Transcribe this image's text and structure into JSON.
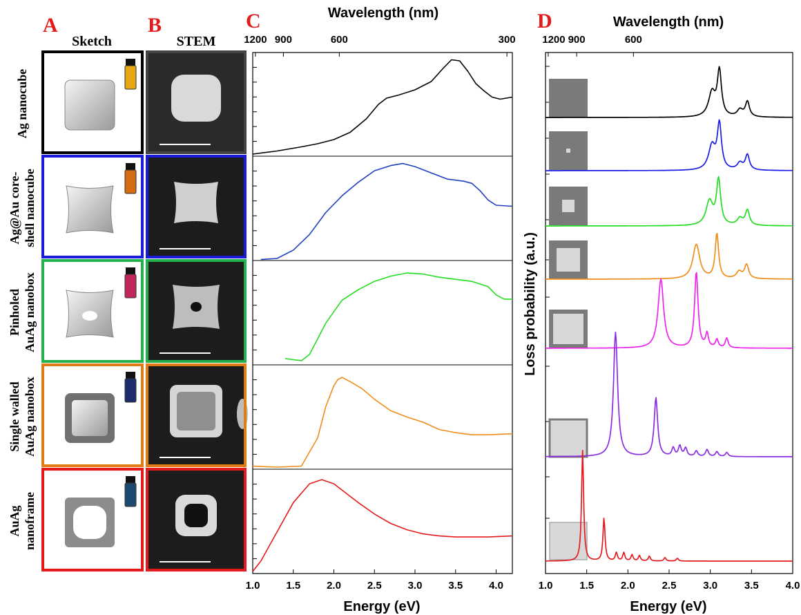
{
  "panels": {
    "a_letter": "A",
    "b_letter": "B",
    "c_letter": "C",
    "d_letter": "D",
    "a_title": "Sketch",
    "b_title": "STEM"
  },
  "rows": [
    {
      "label_lines": [
        "Ag nanocube"
      ],
      "frame_color": "#000000",
      "vial_color": "#e5a813",
      "sketch": "cube"
    },
    {
      "label_lines": [
        "Ag@Au core-",
        "shell nanocube"
      ],
      "frame_color": "#1a1adb",
      "vial_color": "#d46d12",
      "sketch": "concave"
    },
    {
      "label_lines": [
        "Pinholed",
        "AuAg nanobox"
      ],
      "frame_color": "#22b14c",
      "vial_color": "#c2255c",
      "sketch": "pinhole"
    },
    {
      "label_lines": [
        "Single walled",
        "AuAg nanobox"
      ],
      "frame_color": "#e07b16",
      "vial_color": "#1d2a6b",
      "sketch": "box"
    },
    {
      "label_lines": [
        "AuAg",
        "nanoframe"
      ],
      "frame_color": "#e31a1c",
      "vial_color": "#1c4a6e",
      "sketch": "frame"
    }
  ],
  "chart_data": [
    {
      "type": "line",
      "panel": "C",
      "title": "Wavelength (nm)",
      "xlabel": "Energy (eV)",
      "ylabel": "",
      "xlim": [
        1.0,
        4.2
      ],
      "x_ticks": [
        1.0,
        1.5,
        2.0,
        2.5,
        3.0,
        3.5,
        4.0
      ],
      "x_tick_labels": [
        "1.0",
        "1.5",
        "2.0",
        "2.5",
        "3.0",
        "3.5",
        "4.0"
      ],
      "top_ticks": [
        {
          "label": "1200",
          "ev": 1.033
        },
        {
          "label": "900",
          "ev": 1.378
        },
        {
          "label": "600",
          "ev": 2.067
        },
        {
          "label": "300",
          "ev": 4.133
        }
      ],
      "series": [
        {
          "color": "#000000",
          "x": [
            1.0,
            1.3,
            1.6,
            1.8,
            2.0,
            2.2,
            2.4,
            2.55,
            2.65,
            2.8,
            3.0,
            3.2,
            3.35,
            3.45,
            3.55,
            3.65,
            3.75,
            3.85,
            3.95,
            4.05,
            4.2
          ],
          "y": [
            0.02,
            0.05,
            0.09,
            0.12,
            0.16,
            0.23,
            0.36,
            0.5,
            0.56,
            0.59,
            0.64,
            0.72,
            0.85,
            0.93,
            0.92,
            0.82,
            0.7,
            0.63,
            0.57,
            0.55,
            0.57
          ]
        },
        {
          "color": "#1f3fbf",
          "x": [
            1.1,
            1.3,
            1.5,
            1.7,
            1.9,
            2.1,
            2.3,
            2.5,
            2.7,
            2.85,
            3.0,
            3.2,
            3.4,
            3.6,
            3.7,
            3.8,
            3.9,
            4.0,
            4.2
          ],
          "y": [
            0.01,
            0.02,
            0.1,
            0.25,
            0.46,
            0.62,
            0.75,
            0.86,
            0.91,
            0.93,
            0.9,
            0.84,
            0.78,
            0.76,
            0.74,
            0.67,
            0.58,
            0.53,
            0.52
          ]
        },
        {
          "color": "#22dd22",
          "x": [
            1.4,
            1.5,
            1.6,
            1.7,
            1.9,
            2.1,
            2.3,
            2.5,
            2.7,
            2.9,
            3.1,
            3.3,
            3.5,
            3.7,
            3.9,
            4.0,
            4.1,
            4.2
          ],
          "y": [
            0.06,
            0.05,
            0.04,
            0.1,
            0.4,
            0.62,
            0.72,
            0.8,
            0.85,
            0.88,
            0.87,
            0.84,
            0.82,
            0.8,
            0.75,
            0.67,
            0.63,
            0.63
          ]
        },
        {
          "color": "#f08c1a",
          "x": [
            1.0,
            1.3,
            1.6,
            1.8,
            1.9,
            2.0,
            2.05,
            2.1,
            2.2,
            2.35,
            2.5,
            2.7,
            2.9,
            3.1,
            3.3,
            3.5,
            3.7,
            3.9,
            4.2
          ],
          "y": [
            0.03,
            0.02,
            0.03,
            0.3,
            0.6,
            0.8,
            0.86,
            0.88,
            0.84,
            0.77,
            0.67,
            0.56,
            0.5,
            0.45,
            0.38,
            0.35,
            0.33,
            0.33,
            0.34
          ]
        },
        {
          "color": "#e31a1c",
          "x": [
            1.0,
            1.1,
            1.3,
            1.5,
            1.7,
            1.85,
            2.0,
            2.1,
            2.3,
            2.5,
            2.7,
            2.9,
            3.1,
            3.3,
            3.5,
            3.7,
            3.9,
            4.2
          ],
          "y": [
            0.02,
            0.12,
            0.4,
            0.68,
            0.86,
            0.9,
            0.86,
            0.8,
            0.68,
            0.57,
            0.48,
            0.42,
            0.38,
            0.36,
            0.35,
            0.35,
            0.35,
            0.36
          ]
        }
      ]
    },
    {
      "type": "line",
      "panel": "D",
      "title": "Wavelength (nm)",
      "xlabel": "Energy (eV)",
      "ylabel": "Loss probability (a.u.)",
      "xlim": [
        1.0,
        4.0
      ],
      "x_ticks": [
        1.0,
        1.5,
        2.0,
        2.5,
        3.0,
        3.5,
        4.0
      ],
      "x_tick_labels": [
        "1.0",
        "1.5",
        "2.0",
        "2.5",
        "3.0",
        "3.5",
        "4.0"
      ],
      "top_ticks": [
        {
          "label": "1200",
          "ev": 1.033
        },
        {
          "label": "900",
          "ev": 1.378
        },
        {
          "label": "600",
          "ev": 2.067
        }
      ],
      "series": [
        {
          "color": "#000000",
          "offset": 0.0,
          "baseline": 0.004,
          "peaks": [
            [
              3.02,
              0.035,
              0.05
            ],
            [
              3.11,
              0.065,
              0.03
            ],
            [
              3.36,
              0.01,
              0.04
            ],
            [
              3.45,
              0.022,
              0.03
            ]
          ]
        },
        {
          "color": "#1a1ae6",
          "offset": 0.0,
          "baseline": 0.004,
          "peaks": [
            [
              3.02,
              0.035,
              0.05
            ],
            [
              3.11,
              0.065,
              0.03
            ],
            [
              3.36,
              0.01,
              0.04
            ],
            [
              3.45,
              0.022,
              0.03
            ]
          ]
        },
        {
          "color": "#22dd22",
          "offset": 0.0,
          "baseline": 0.004,
          "peaks": [
            [
              2.99,
              0.035,
              0.05
            ],
            [
              3.1,
              0.065,
              0.03
            ],
            [
              3.36,
              0.01,
              0.04
            ],
            [
              3.45,
              0.022,
              0.03
            ]
          ]
        },
        {
          "color": "#f08c1a",
          "offset": 0.0,
          "baseline": 0.004,
          "peaks": [
            [
              2.83,
              0.05,
              0.05
            ],
            [
              3.08,
              0.065,
              0.025
            ],
            [
              3.35,
              0.01,
              0.04
            ],
            [
              3.44,
              0.02,
              0.03
            ]
          ]
        },
        {
          "color": "#ee22ee",
          "offset": 0.0,
          "baseline": 0.004,
          "peaks": [
            [
              2.4,
              0.1,
              0.04
            ],
            [
              2.83,
              0.11,
              0.025
            ],
            [
              2.96,
              0.02,
              0.02
            ],
            [
              3.08,
              0.012,
              0.02
            ],
            [
              3.2,
              0.014,
              0.02
            ]
          ]
        },
        {
          "color": "#8a2be2",
          "offset": 0.0,
          "baseline": 0.003,
          "peaks": [
            [
              1.85,
              0.18,
              0.03
            ],
            [
              2.34,
              0.085,
              0.025
            ],
            [
              2.55,
              0.012,
              0.02
            ],
            [
              2.63,
              0.015,
              0.02
            ],
            [
              2.7,
              0.012,
              0.02
            ],
            [
              2.83,
              0.008,
              0.02
            ],
            [
              2.96,
              0.01,
              0.02
            ],
            [
              3.08,
              0.007,
              0.02
            ],
            [
              3.2,
              0.006,
              0.02
            ]
          ]
        },
        {
          "color": "#e31a1c",
          "offset": 0.0,
          "baseline": 0.003,
          "peaks": [
            [
              1.45,
              0.16,
              0.015
            ],
            [
              1.71,
              0.062,
              0.015
            ],
            [
              1.86,
              0.012,
              0.015
            ],
            [
              1.95,
              0.012,
              0.015
            ],
            [
              2.05,
              0.009,
              0.015
            ],
            [
              2.14,
              0.008,
              0.015
            ],
            [
              2.26,
              0.007,
              0.015
            ],
            [
              2.45,
              0.005,
              0.015
            ],
            [
              2.6,
              0.004,
              0.015
            ]
          ]
        }
      ]
    }
  ]
}
